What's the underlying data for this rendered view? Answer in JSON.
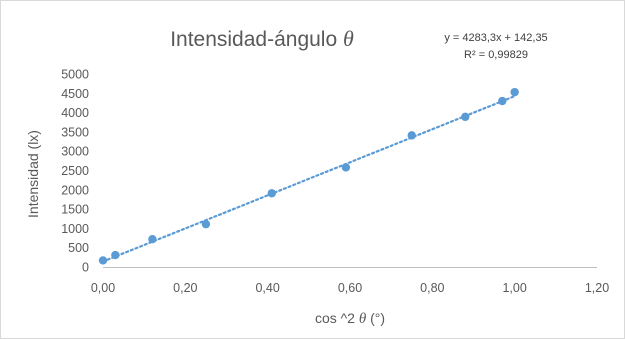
{
  "chart_data": {
    "type": "scatter",
    "title": {
      "text": "Intensidad-ángulo",
      "symbol": "θ"
    },
    "xlabel": {
      "prefix": "cos ^2",
      "symbol": "θ",
      "suffix": "(°)"
    },
    "ylabel": "Intensidad (lx)",
    "xlim": [
      0,
      1.2
    ],
    "ylim": [
      0,
      5000
    ],
    "x_ticks": [
      0,
      0.2,
      0.4,
      0.6,
      0.8,
      1.0,
      1.2
    ],
    "x_tick_labels": [
      "0,00",
      "0,20",
      "0,40",
      "0,60",
      "0,80",
      "1,00",
      "1,20"
    ],
    "y_ticks": [
      0,
      500,
      1000,
      1500,
      2000,
      2500,
      3000,
      3500,
      4000,
      4500,
      5000
    ],
    "y_tick_labels": [
      "0",
      "500",
      "1000",
      "1500",
      "2000",
      "2500",
      "3000",
      "3500",
      "4000",
      "4500",
      "5000"
    ],
    "grid": {
      "x": false,
      "y": false
    },
    "legend": "none",
    "series": [
      {
        "marker_color": "#5b9bd5",
        "x": [
          0.0,
          0.03,
          0.12,
          0.25,
          0.41,
          0.59,
          0.75,
          0.88,
          0.97,
          1.0
        ],
        "y": [
          170,
          310,
          720,
          1110,
          1910,
          2580,
          3410,
          3890,
          4300,
          4530
        ]
      }
    ],
    "trendline": {
      "type": "linear",
      "slope": 4283.3,
      "intercept": 142.35,
      "x_range": [
        0.0,
        1.0
      ],
      "color": "#5b9bd5",
      "style": "dotted",
      "equation_label": "y = 4283,3x + 142,35",
      "r2_label": "R² = 0,99829"
    }
  }
}
